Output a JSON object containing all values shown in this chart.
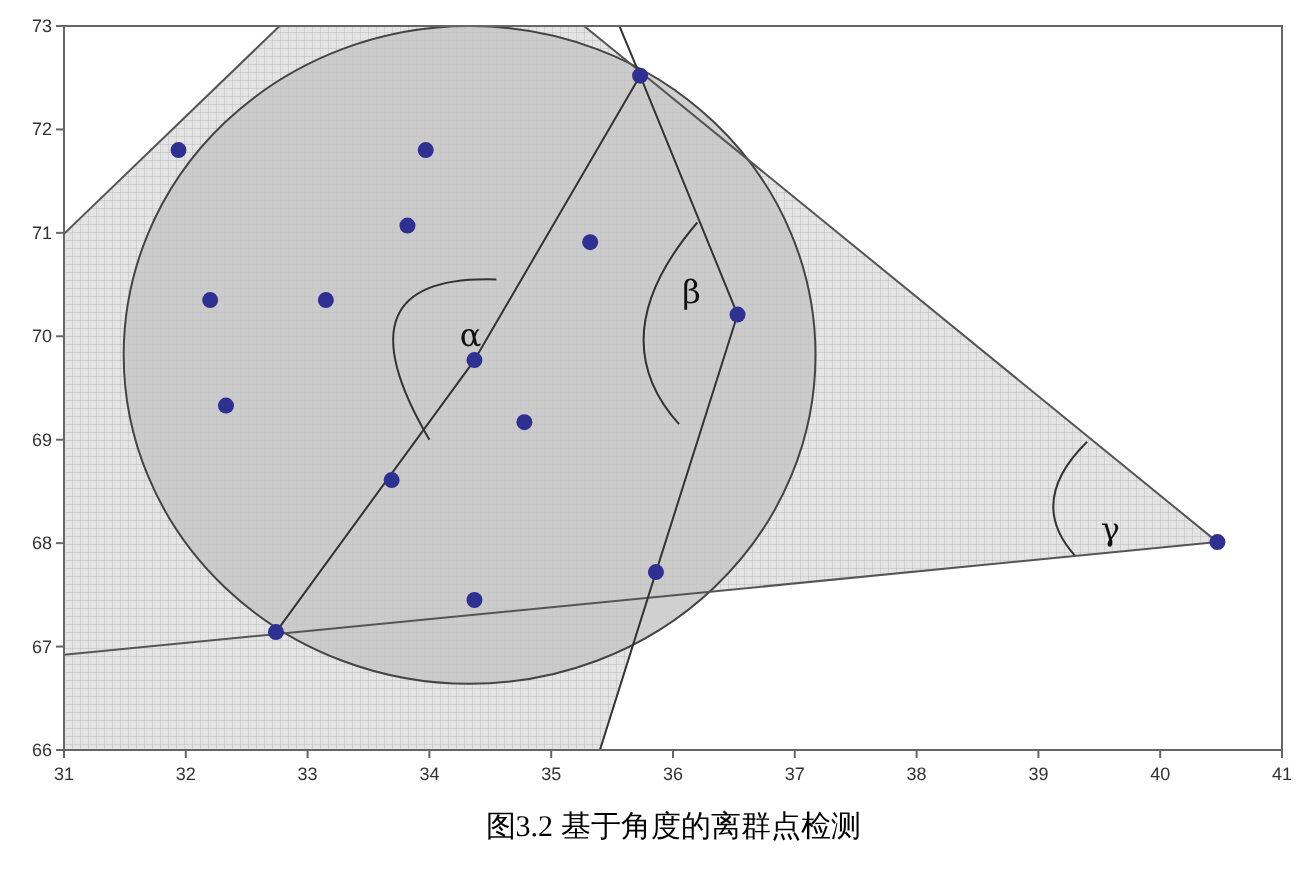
{
  "chart_data": {
    "type": "scatter",
    "xlim": [
      31,
      41
    ],
    "ylim": [
      66,
      73
    ],
    "xticks": [
      31,
      32,
      33,
      34,
      35,
      36,
      37,
      38,
      39,
      40,
      41
    ],
    "yticks": [
      66,
      67,
      68,
      69,
      70,
      71,
      72,
      73
    ],
    "grid": false,
    "marker": "circle",
    "series": [
      {
        "type": "line",
        "color": "#555555",
        "marker": "none",
        "x": [
          31,
          32.77
        ],
        "values": [
          70.99,
          73
        ]
      },
      {
        "type": "line",
        "color": "#555555",
        "marker": "none",
        "x": [
          35.27,
          40.47,
          31
        ],
        "values": [
          73,
          68.01,
          66.92
        ]
      },
      {
        "type": "line",
        "color": "#333333",
        "marker": "none",
        "x": [
          32.74,
          34.37,
          35.73
        ],
        "values": [
          67.14,
          69.77,
          72.52
        ]
      },
      {
        "type": "line",
        "color": "#333333",
        "marker": "none",
        "x": [
          35.56,
          35.73,
          36.53,
          35.86,
          35.4
        ],
        "values": [
          73,
          72.52,
          70.21,
          67.72,
          66
        ]
      },
      {
        "type": "scatter",
        "color": "#2e3192",
        "x": [
          31.94,
          33.97,
          35.73,
          33.82,
          35.32,
          32.2,
          33.15,
          36.53,
          34.37,
          32.33,
          34.78,
          33.69,
          35.86,
          34.37,
          32.74,
          40.47
        ],
        "values": [
          71.8,
          71.8,
          72.52,
          71.07,
          70.91,
          70.35,
          70.35,
          70.21,
          69.77,
          69.33,
          69.17,
          68.61,
          67.72,
          67.45,
          67.14,
          68.01
        ]
      }
    ],
    "annotations": [
      {
        "text": "α",
        "x": 34.37,
        "y": 69.77
      },
      {
        "text": "β",
        "x": 36.53,
        "y": 70.21
      },
      {
        "text": "γ",
        "x": 39.59,
        "y": 67.91
      },
      "图3.2  基于角度的离群点检测"
    ]
  }
}
